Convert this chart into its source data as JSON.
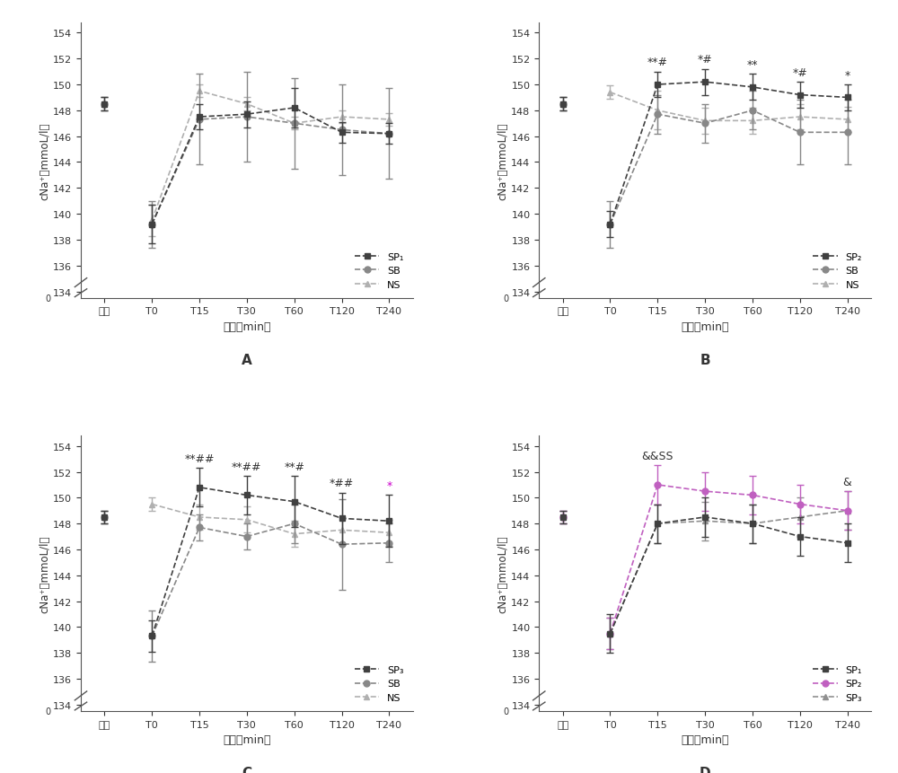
{
  "x_labels": [
    "正常",
    "T0",
    "T15",
    "T30",
    "T60",
    "T120",
    "T240"
  ],
  "x_positions": [
    0,
    1,
    2,
    3,
    4,
    5,
    6
  ],
  "ylabel": "cNa⁺（mmoL/l）",
  "xlabel": "时间（min）",
  "panel_A": {
    "label": "A",
    "SP_mean": [
      148.5,
      139.2,
      147.5,
      147.7,
      148.2,
      146.3,
      146.2
    ],
    "SP_err": [
      0.5,
      1.5,
      1.0,
      1.0,
      1.5,
      0.8,
      0.8
    ],
    "SB_mean": [
      148.5,
      139.2,
      147.3,
      147.5,
      147.0,
      146.5,
      146.2
    ],
    "SB_err": [
      0.5,
      1.8,
      3.5,
      3.5,
      3.5,
      3.5,
      3.5
    ],
    "NS_mean": [
      148.5,
      139.5,
      149.5,
      148.5,
      147.0,
      147.5,
      147.3
    ],
    "NS_err": [
      0.5,
      1.2,
      0.5,
      0.5,
      0.5,
      0.5,
      0.5
    ],
    "annotations": [],
    "legend_labels": [
      "SP₁",
      "SB",
      "NS"
    ]
  },
  "panel_B": {
    "label": "B",
    "SP_mean": [
      148.5,
      139.2,
      150.0,
      150.2,
      149.8,
      149.2,
      149.0
    ],
    "SP_err": [
      0.5,
      1.0,
      1.0,
      1.0,
      1.0,
      1.0,
      1.0
    ],
    "SB_mean": [
      148.5,
      139.2,
      147.7,
      147.0,
      148.0,
      146.3,
      146.3
    ],
    "SB_err": [
      0.5,
      1.8,
      1.5,
      1.5,
      1.5,
      2.5,
      2.5
    ],
    "NS_mean": [
      148.5,
      149.4,
      148.0,
      147.2,
      147.2,
      147.5,
      147.3
    ],
    "NS_err": [
      0.5,
      0.5,
      1.5,
      1.0,
      1.0,
      1.0,
      1.0
    ],
    "annotations": [
      {
        "x": 2,
        "text": "**#",
        "fontsize": 9
      },
      {
        "x": 3,
        "text": "*#",
        "fontsize": 9
      },
      {
        "x": 4,
        "text": "**",
        "fontsize": 9
      },
      {
        "x": 5,
        "text": "*#",
        "fontsize": 9
      },
      {
        "x": 6,
        "text": "*",
        "fontsize": 9
      }
    ],
    "legend_labels": [
      "SP₂",
      "SB",
      "NS"
    ]
  },
  "panel_C": {
    "label": "C",
    "SP_mean": [
      148.5,
      139.3,
      150.8,
      150.2,
      149.7,
      148.4,
      148.2
    ],
    "SP_err": [
      0.5,
      1.2,
      1.5,
      1.5,
      2.0,
      2.0,
      2.0
    ],
    "SB_mean": [
      148.5,
      139.3,
      147.7,
      147.0,
      148.0,
      146.4,
      146.5
    ],
    "SB_err": [
      0.5,
      2.0,
      1.0,
      1.0,
      1.5,
      3.5,
      1.5
    ],
    "NS_mean": [
      148.5,
      149.5,
      148.5,
      148.3,
      147.2,
      147.5,
      147.3
    ],
    "NS_err": [
      0.5,
      0.5,
      1.0,
      1.0,
      1.0,
      1.0,
      1.0
    ],
    "annotations": [
      {
        "x": 2,
        "text": "**##",
        "fontsize": 9
      },
      {
        "x": 3,
        "text": "**##",
        "fontsize": 9
      },
      {
        "x": 4,
        "text": "**#",
        "fontsize": 9
      },
      {
        "x": 5,
        "text": "*##",
        "fontsize": 9
      },
      {
        "x": 6,
        "text": "*",
        "fontsize": 9,
        "color": "#cc00cc"
      }
    ],
    "legend_labels": [
      "SP₃",
      "SB",
      "NS"
    ]
  },
  "panel_D": {
    "label": "D",
    "SP1_mean": [
      148.5,
      139.5,
      148.0,
      148.5,
      148.0,
      147.0,
      146.5
    ],
    "SP1_err": [
      0.5,
      1.5,
      1.5,
      1.5,
      1.5,
      1.5,
      1.5
    ],
    "SP2_mean": [
      148.5,
      139.5,
      151.0,
      150.5,
      150.2,
      149.5,
      149.0
    ],
    "SP2_err": [
      0.5,
      1.2,
      1.5,
      1.5,
      1.5,
      1.5,
      1.5
    ],
    "SP3_mean": [
      148.5,
      139.5,
      148.0,
      148.2,
      148.0,
      148.5,
      149.0
    ],
    "SP3_err": [
      0.5,
      1.2,
      1.5,
      1.5,
      1.5,
      1.5,
      1.5
    ],
    "annotations": [
      {
        "x": 2,
        "text": "&&SS",
        "fontsize": 9
      },
      {
        "x": 6,
        "text": "&",
        "fontsize": 9
      }
    ],
    "legend_labels": [
      "SP₁",
      "SP₂",
      "SP₃"
    ]
  },
  "linestyle": "--",
  "markersize": 5,
  "elinewidth": 1.0,
  "capsize": 3,
  "color1": "#404040",
  "color2": "#888888",
  "color3": "#b0b0b0",
  "color_D2": "#c060c0",
  "color_D3": "#909090"
}
